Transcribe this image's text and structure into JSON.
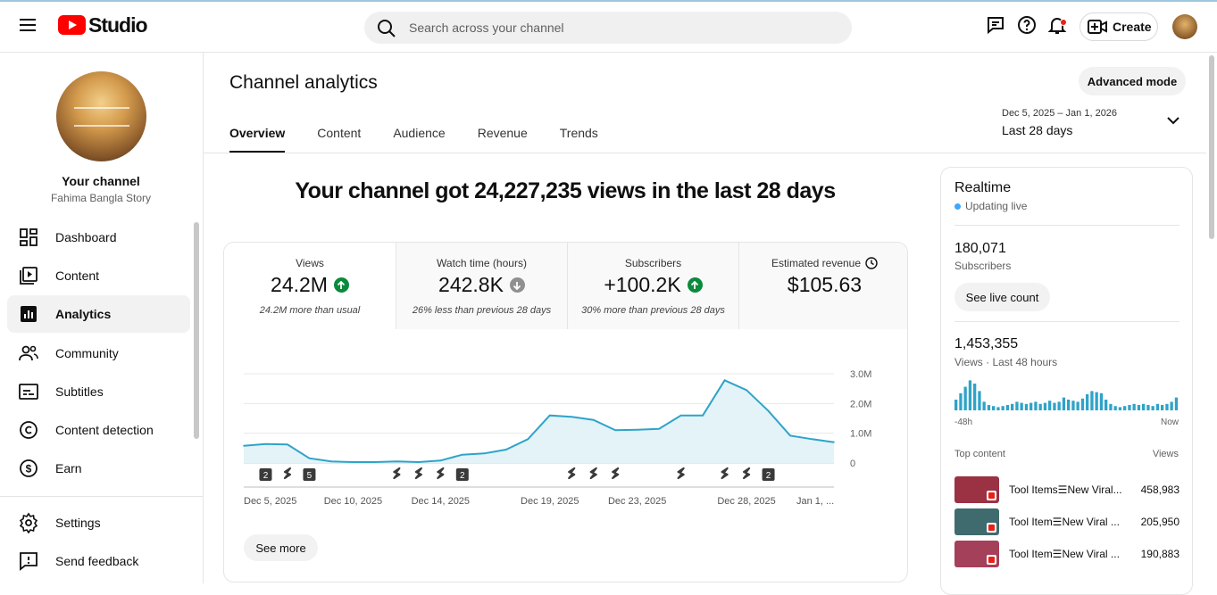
{
  "header": {
    "logo_text": "Studio",
    "search_placeholder": "Search across your channel",
    "create_label": "Create"
  },
  "sidebar": {
    "channel_name": "Your channel",
    "channel_handle": "Fahima Bangla Story",
    "items": [
      {
        "label": "Dashboard",
        "icon": "dashboard-icon"
      },
      {
        "label": "Content",
        "icon": "content-icon"
      },
      {
        "label": "Analytics",
        "icon": "analytics-icon",
        "active": true
      },
      {
        "label": "Community",
        "icon": "community-icon"
      },
      {
        "label": "Subtitles",
        "icon": "subtitles-icon"
      },
      {
        "label": "Content detection",
        "icon": "copyright-icon"
      },
      {
        "label": "Earn",
        "icon": "earn-icon"
      },
      {
        "label": "Settings",
        "icon": "settings-icon"
      },
      {
        "label": "Send feedback",
        "icon": "feedback-icon"
      }
    ]
  },
  "main": {
    "title": "Channel analytics",
    "advanced_mode": "Advanced mode",
    "tabs": [
      "Overview",
      "Content",
      "Audience",
      "Revenue",
      "Trends"
    ],
    "date_range": "Dec 5, 2025 – Jan 1, 2026",
    "date_label": "Last 28 days",
    "headline": "Your channel got 24,227,235 views in the last 28 days",
    "metrics": [
      {
        "label": "Views",
        "value": "24.2M",
        "trend": "up",
        "compare": "24.2M more than usual"
      },
      {
        "label": "Watch time (hours)",
        "value": "242.8K",
        "trend": "down",
        "compare": "26% less than previous 28 days"
      },
      {
        "label": "Subscribers",
        "value": "+100.2K",
        "trend": "up",
        "compare": "30% more than previous 28 days"
      },
      {
        "label": "Estimated revenue",
        "value": "$105.63",
        "trend": "none",
        "compare": ""
      }
    ],
    "see_more": "See more"
  },
  "chart_data": {
    "type": "area",
    "x": [
      "Dec 5",
      "Dec 6",
      "Dec 7",
      "Dec 8",
      "Dec 9",
      "Dec 10",
      "Dec 11",
      "Dec 12",
      "Dec 13",
      "Dec 14",
      "Dec 15",
      "Dec 16",
      "Dec 17",
      "Dec 18",
      "Dec 19",
      "Dec 20",
      "Dec 21",
      "Dec 22",
      "Dec 23",
      "Dec 24",
      "Dec 25",
      "Dec 26",
      "Dec 27",
      "Dec 28",
      "Dec 29",
      "Dec 30",
      "Dec 31",
      "Jan 1"
    ],
    "values": [
      0.58,
      0.64,
      0.62,
      0.16,
      0.05,
      0.03,
      0.03,
      0.05,
      0.03,
      0.08,
      0.28,
      0.32,
      0.45,
      0.8,
      1.6,
      1.55,
      1.45,
      1.1,
      1.12,
      1.15,
      1.6,
      1.6,
      2.78,
      2.45,
      1.75,
      0.92,
      0.8,
      0.7
    ],
    "x_tick_labels": [
      "Dec 5, 2025",
      "Dec 10, 2025",
      "Dec 14, 2025",
      "Dec 19, 2025",
      "Dec 23, 2025",
      "Dec 28, 2025",
      "Jan 1, ..."
    ],
    "x_tick_days": [
      "Dec 5",
      "Dec 10",
      "Dec 14",
      "Dec 19",
      "Dec 23",
      "Dec 28",
      "Jan 1"
    ],
    "y_tick_labels": [
      "0",
      "1.0M",
      "2.0M",
      "3.0M"
    ],
    "y_ticks": [
      0,
      1,
      2,
      3
    ],
    "ylim": [
      0,
      3
    ],
    "y_unit": "millions of views",
    "color": "#2fa3c9",
    "markers": [
      {
        "day": "Dec 6",
        "kind": "count",
        "label": "2"
      },
      {
        "day": "Dec 7",
        "kind": "short"
      },
      {
        "day": "Dec 8",
        "kind": "count",
        "label": "5"
      },
      {
        "day": "Dec 12",
        "kind": "short"
      },
      {
        "day": "Dec 13",
        "kind": "short"
      },
      {
        "day": "Dec 14",
        "kind": "short"
      },
      {
        "day": "Dec 15",
        "kind": "count",
        "label": "2"
      },
      {
        "day": "Dec 20",
        "kind": "short"
      },
      {
        "day": "Dec 21",
        "kind": "short"
      },
      {
        "day": "Dec 22",
        "kind": "short"
      },
      {
        "day": "Dec 25",
        "kind": "short"
      },
      {
        "day": "Dec 27",
        "kind": "short"
      },
      {
        "day": "Dec 28",
        "kind": "short"
      },
      {
        "day": "Dec 29",
        "kind": "count",
        "label": "2"
      }
    ]
  },
  "realtime": {
    "title": "Realtime",
    "status": "Updating live",
    "subscribers_value": "180,071",
    "subscribers_label": "Subscribers",
    "see_live": "See live count",
    "views_value": "1,453,355",
    "views_label": "Views · Last 48 hours",
    "axis_start": "-48h",
    "axis_end": "Now",
    "top_content_label": "Top content",
    "views_col": "Views",
    "hourly_values": [
      10,
      16,
      22,
      28,
      25,
      18,
      8,
      5,
      4,
      3,
      4,
      5,
      6,
      8,
      7,
      6,
      7,
      8,
      6,
      7,
      9,
      7,
      8,
      12,
      10,
      9,
      8,
      11,
      15,
      18,
      17,
      16,
      10,
      6,
      4,
      3,
      4,
      5,
      6,
      5,
      6,
      5,
      4,
      6,
      5,
      6,
      8,
      12
    ],
    "top_items": [
      {
        "title": "Tool Items☰New Viral...",
        "views": "458,983",
        "thumb_color": "#9a3244"
      },
      {
        "title": "Tool Item☰New Viral ...",
        "views": "205,950",
        "thumb_color": "#3f6b6e"
      },
      {
        "title": "Tool Item☰New Viral ...",
        "views": "190,883",
        "thumb_color": "#a5405a"
      }
    ]
  }
}
